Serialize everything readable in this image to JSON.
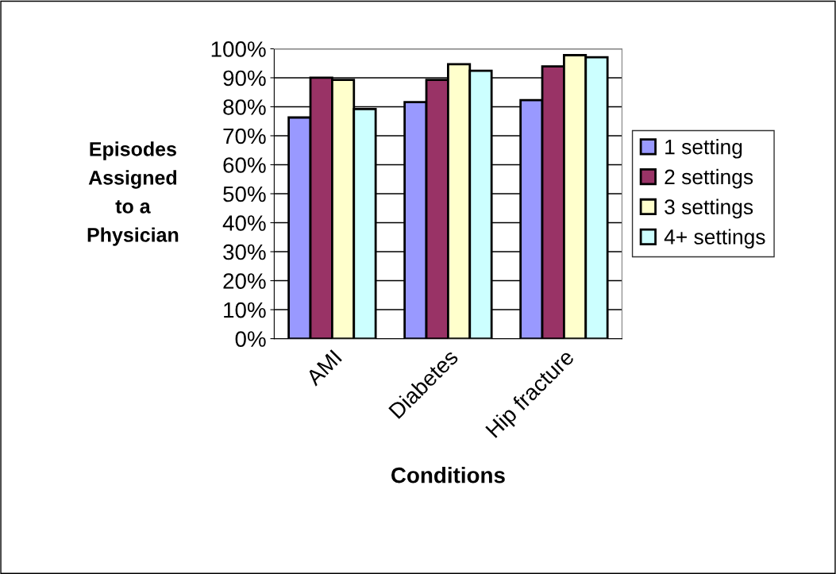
{
  "chart_data": {
    "type": "bar",
    "xlabel": "Conditions",
    "ylabel": "Episodes\nAssigned\nto a\nPhysician",
    "categories": [
      "AMI",
      "Diabetes",
      "Hip fracture"
    ],
    "series": [
      {
        "name": "1 setting",
        "color": "#9999ff",
        "values": [
          76.3,
          81.6,
          82.3
        ]
      },
      {
        "name": "2 settings",
        "color": "#993366",
        "values": [
          90,
          89.3,
          93.9
        ]
      },
      {
        "name": "3 settings",
        "color": "#ffffcc",
        "values": [
          89.3,
          94.7,
          97.8
        ]
      },
      {
        "name": "4+ settings",
        "color": "#ccffff",
        "values": [
          79.2,
          92.4,
          97.1
        ]
      }
    ],
    "ylim": [
      0,
      100
    ],
    "yticks": [
      {
        "value": 0,
        "label": "0%"
      },
      {
        "value": 10,
        "label": "10%"
      },
      {
        "value": 20,
        "label": "20%"
      },
      {
        "value": 30,
        "label": "30%"
      },
      {
        "value": 40,
        "label": "40%"
      },
      {
        "value": 50,
        "label": "50%"
      },
      {
        "value": 60,
        "label": "60%"
      },
      {
        "value": 70,
        "label": "70%"
      },
      {
        "value": 80,
        "label": "80%"
      },
      {
        "value": 90,
        "label": "90%"
      },
      {
        "value": 100,
        "label": "100%"
      }
    ],
    "grid": "y",
    "legend": "right"
  }
}
